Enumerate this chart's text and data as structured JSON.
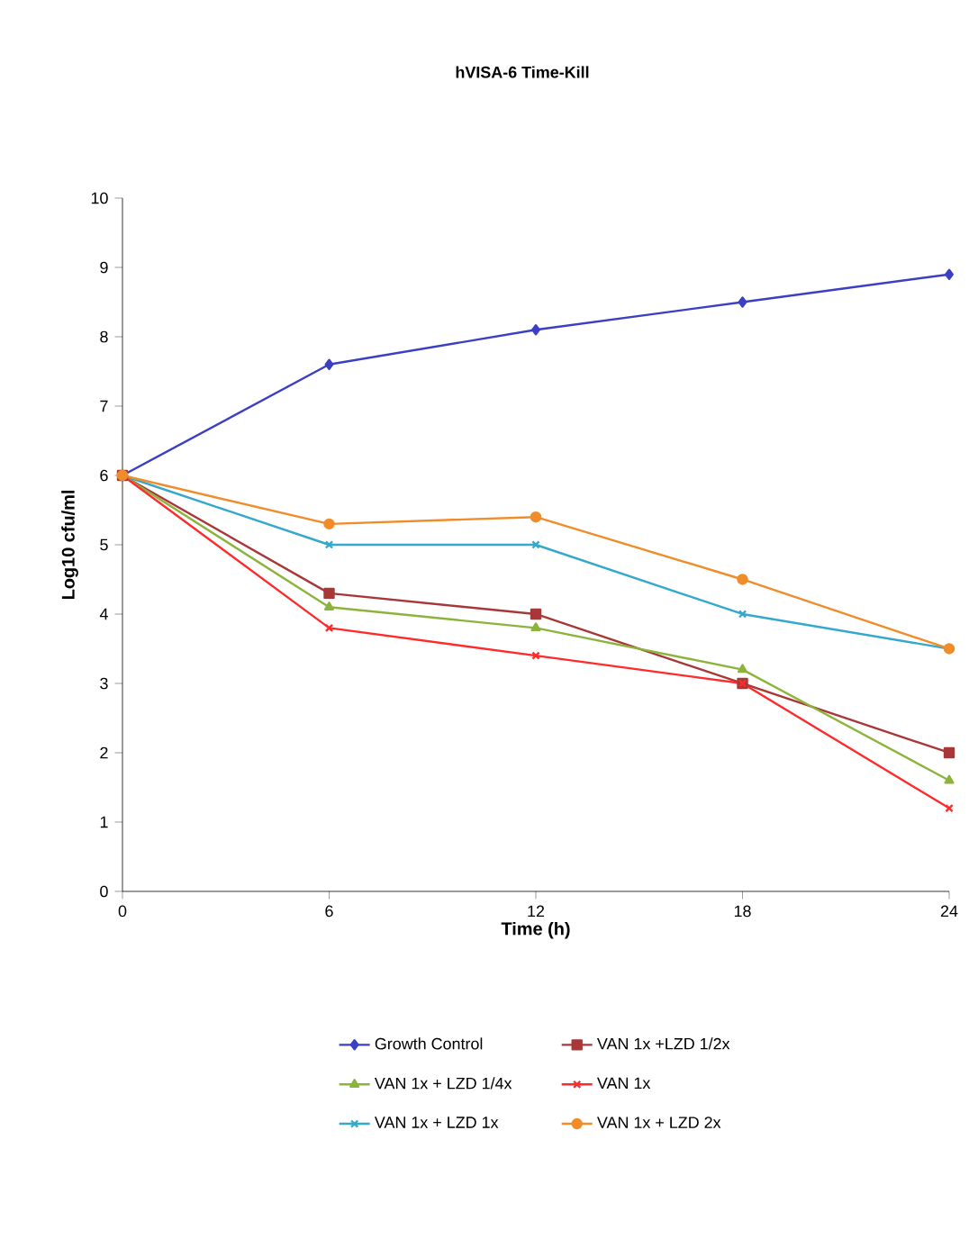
{
  "chart_data": {
    "type": "line",
    "title": "hVISA-6 Time-Kill",
    "xlabel": "Time (h)",
    "ylabel": "Log10 cfu/ml",
    "x": [
      0,
      6,
      12,
      18,
      24
    ],
    "xlim": [
      0,
      24
    ],
    "xticks": [
      0,
      6,
      12,
      18,
      24
    ],
    "ylim": [
      0,
      10
    ],
    "yticks": [
      0,
      1,
      2,
      3,
      4,
      5,
      6,
      7,
      8,
      9,
      10
    ],
    "legend": "bottom",
    "grid": false,
    "line_style": "solid",
    "series": [
      {
        "name": "Growth Control",
        "color": "#3b3fc4",
        "marker": "diamond",
        "values": [
          6,
          7.6,
          8.1,
          8.5,
          8.9
        ]
      },
      {
        "name": "VAN 1x +LZD 1/2x",
        "color": "#a83838",
        "marker": "square",
        "values": [
          6,
          4.3,
          4.0,
          3.0,
          2.0
        ]
      },
      {
        "name": "VAN 1x + LZD 1/4x",
        "color": "#8cb43c",
        "marker": "triangle",
        "values": [
          6,
          4.1,
          3.8,
          3.2,
          1.6
        ]
      },
      {
        "name": "VAN 1x",
        "color": "#ff2a2a",
        "marker": "cross",
        "values": [
          6,
          3.8,
          3.4,
          3.0,
          1.2
        ]
      },
      {
        "name": "VAN 1x + LZD 1x",
        "color": "#35a8cc",
        "marker": "cross",
        "values": [
          6,
          5.0,
          5.0,
          4.0,
          3.5
        ]
      },
      {
        "name": "VAN 1x + LZD 2x",
        "color": "#f08c2a",
        "marker": "circle",
        "values": [
          6,
          5.3,
          5.4,
          4.5,
          3.5
        ]
      }
    ]
  }
}
